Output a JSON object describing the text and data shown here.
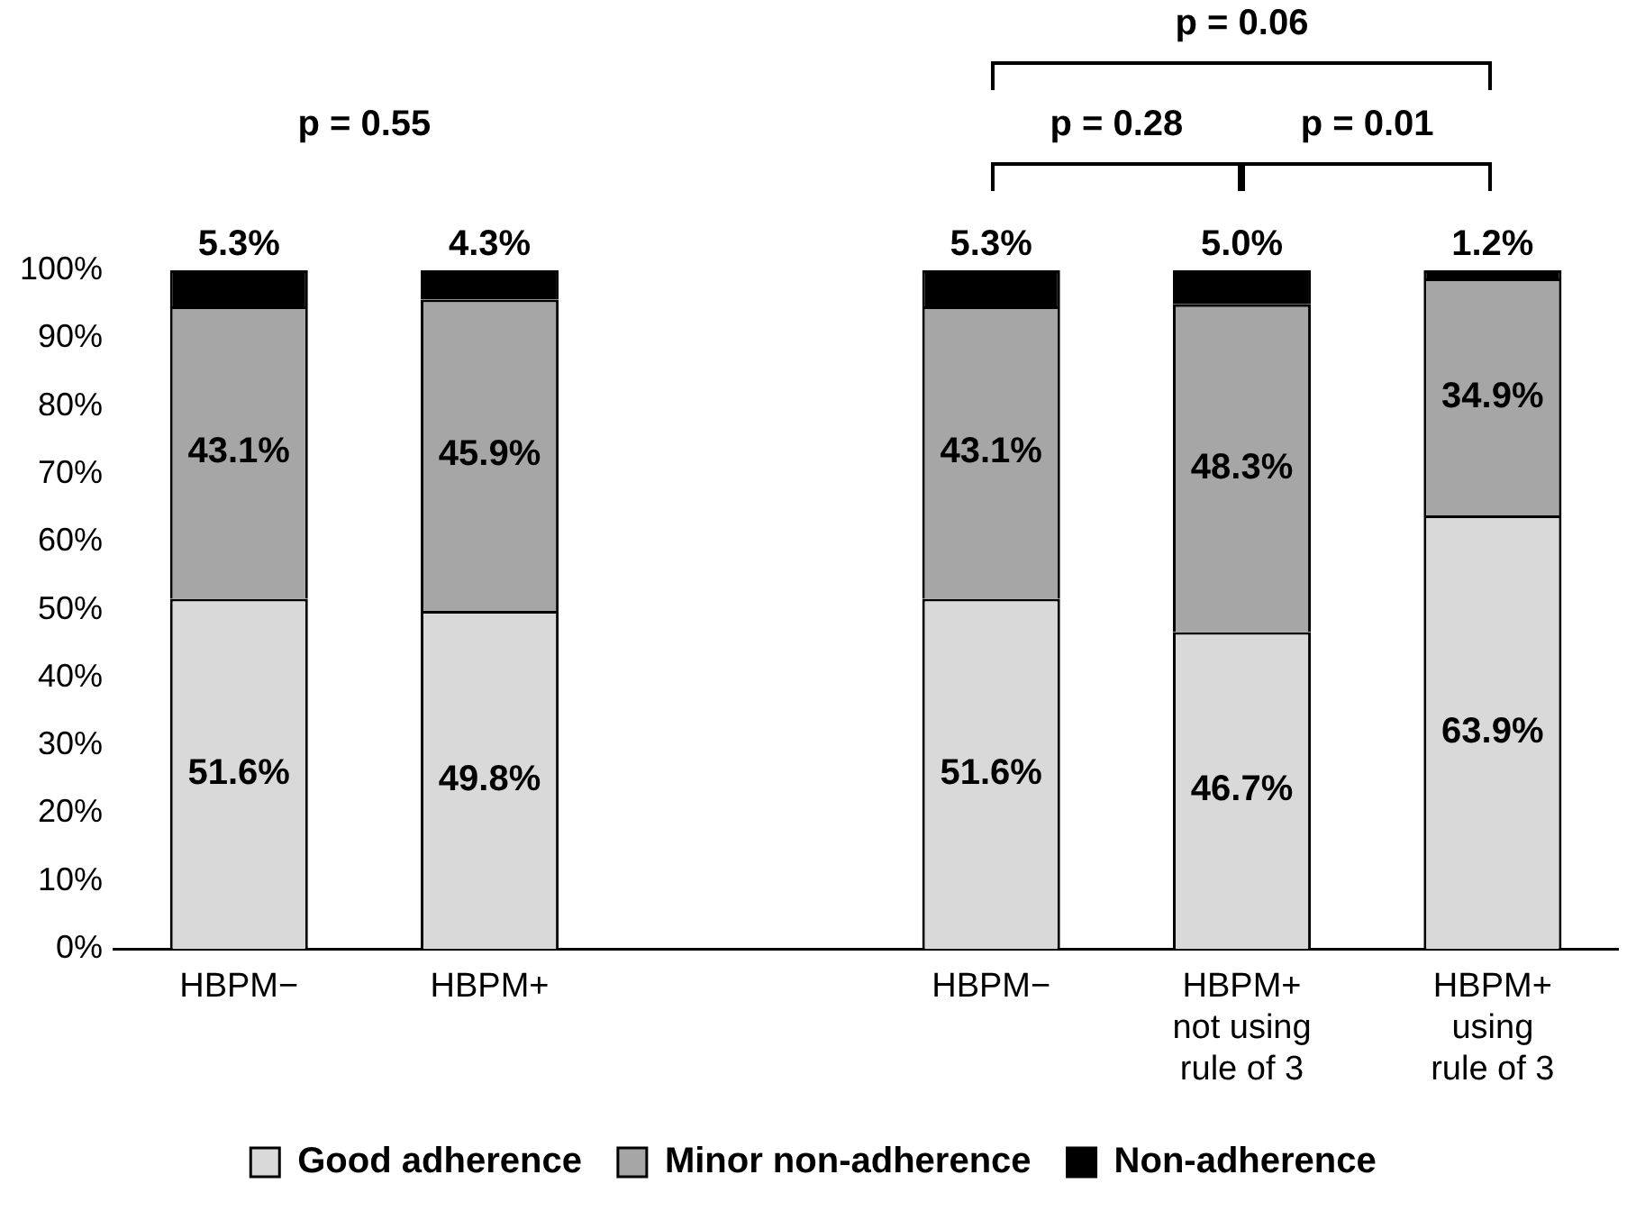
{
  "chart_data": {
    "type": "bar",
    "stacked": true,
    "categories": [
      "HBPM−",
      "HBPM+",
      null,
      "HBPM−",
      "HBPM+\nnot using\nrule of 3",
      "HBPM+\nusing\nrule of 3"
    ],
    "series": [
      {
        "name": "Good adherence",
        "color": "#d9d9d9",
        "values": [
          51.6,
          49.8,
          null,
          51.6,
          46.7,
          63.9
        ],
        "value_labels": [
          "51.6%",
          "49.8%",
          null,
          "51.6%",
          "46.7%",
          "63.9%"
        ]
      },
      {
        "name": "Minor non-adherence",
        "color": "#a6a6a6",
        "values": [
          43.1,
          45.9,
          null,
          43.1,
          48.3,
          34.9
        ],
        "value_labels": [
          "43.1%",
          "45.9%",
          null,
          "43.1%",
          "48.3%",
          "34.9%"
        ]
      },
      {
        "name": "Non-adherence",
        "color": "#000000",
        "values": [
          5.3,
          4.3,
          null,
          5.3,
          5.0,
          1.2
        ],
        "value_labels": [
          "5.3%",
          "4.3%",
          null,
          "5.3%",
          "5.0%",
          "1.2%"
        ]
      }
    ],
    "ylim": [
      0,
      100
    ],
    "yticks": [
      {
        "value": 0,
        "label": "0%"
      },
      {
        "value": 10,
        "label": "10%"
      },
      {
        "value": 20,
        "label": "20%"
      },
      {
        "value": 30,
        "label": "30%"
      },
      {
        "value": 40,
        "label": "40%"
      },
      {
        "value": 50,
        "label": "50%"
      },
      {
        "value": 60,
        "label": "60%"
      },
      {
        "value": 70,
        "label": "70%"
      },
      {
        "value": 80,
        "label": "80%"
      },
      {
        "value": 90,
        "label": "90%"
      },
      {
        "value": 100,
        "label": "100%"
      }
    ],
    "grid": false,
    "legend": "bottom",
    "annotations": [
      "p = 0.55",
      "p = 0.28",
      "p = 0.01",
      "p = 0.06"
    ]
  }
}
